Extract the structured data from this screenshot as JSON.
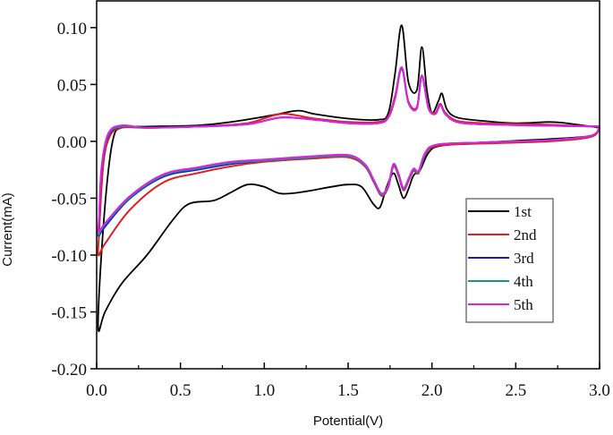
{
  "chart_data": {
    "type": "line",
    "title": "",
    "xlabel": "Potential(V)",
    "ylabel": "Current(mA)",
    "xlim": [
      0.0,
      3.0
    ],
    "ylim": [
      -0.2,
      0.12
    ],
    "xticks": [
      "0.0",
      "0.5",
      "1.0",
      "1.5",
      "2.0",
      "2.5",
      "3.0"
    ],
    "xtick_values": [
      0.0,
      0.5,
      1.0,
      1.5,
      2.0,
      2.5,
      3.0
    ],
    "yticks": [
      "0.10",
      "0.05",
      "0.00",
      "-0.05",
      "-0.10",
      "-0.15",
      "-0.20"
    ],
    "ytick_values": [
      0.1,
      0.05,
      0.0,
      -0.05,
      -0.1,
      -0.15,
      -0.2
    ],
    "grid": false,
    "legend_position": "bottom-right",
    "series": [
      {
        "name": "1st",
        "color": "#000000",
        "points": [
          [
            3.0,
            0.012
          ],
          [
            2.8,
            0.016
          ],
          [
            2.7,
            0.017
          ],
          [
            2.5,
            0.016
          ],
          [
            2.3,
            0.018
          ],
          [
            2.15,
            0.021
          ],
          [
            2.09,
            0.028
          ],
          [
            2.06,
            0.042
          ],
          [
            2.04,
            0.036
          ],
          [
            2.0,
            0.025
          ],
          [
            1.97,
            0.045
          ],
          [
            1.94,
            0.083
          ],
          [
            1.91,
            0.045
          ],
          [
            1.86,
            0.052
          ],
          [
            1.82,
            0.102
          ],
          [
            1.78,
            0.06
          ],
          [
            1.74,
            0.025
          ],
          [
            1.68,
            0.019
          ],
          [
            1.5,
            0.02
          ],
          [
            1.3,
            0.024
          ],
          [
            1.2,
            0.027
          ],
          [
            1.05,
            0.023
          ],
          [
            0.8,
            0.017
          ],
          [
            0.6,
            0.014
          ],
          [
            0.3,
            0.013
          ],
          [
            0.15,
            0.012
          ],
          [
            0.1,
            0.003
          ],
          [
            0.06,
            -0.04
          ],
          [
            0.02,
            -0.12
          ],
          [
            0.01,
            -0.166
          ],
          [
            0.05,
            -0.15
          ],
          [
            0.15,
            -0.125
          ],
          [
            0.3,
            -0.1
          ],
          [
            0.45,
            -0.07
          ],
          [
            0.55,
            -0.055
          ],
          [
            0.7,
            -0.052
          ],
          [
            0.8,
            -0.045
          ],
          [
            0.9,
            -0.038
          ],
          [
            1.0,
            -0.04
          ],
          [
            1.1,
            -0.046
          ],
          [
            1.25,
            -0.044
          ],
          [
            1.4,
            -0.04
          ],
          [
            1.5,
            -0.038
          ],
          [
            1.58,
            -0.04
          ],
          [
            1.65,
            -0.055
          ],
          [
            1.69,
            -0.058
          ],
          [
            1.73,
            -0.04
          ],
          [
            1.77,
            -0.028
          ],
          [
            1.8,
            -0.038
          ],
          [
            1.83,
            -0.05
          ],
          [
            1.86,
            -0.042
          ],
          [
            1.89,
            -0.03
          ],
          [
            1.93,
            -0.025
          ],
          [
            1.98,
            -0.01
          ],
          [
            2.05,
            -0.004
          ],
          [
            2.3,
            -0.001
          ],
          [
            2.7,
            0.002
          ],
          [
            2.95,
            0.005
          ],
          [
            3.0,
            0.012
          ]
        ]
      },
      {
        "name": "2nd",
        "color": "#e02020",
        "points": [
          [
            3.0,
            0.013
          ],
          [
            2.6,
            0.015
          ],
          [
            2.3,
            0.016
          ],
          [
            2.15,
            0.018
          ],
          [
            2.08,
            0.025
          ],
          [
            2.05,
            0.033
          ],
          [
            2.02,
            0.025
          ],
          [
            1.98,
            0.03
          ],
          [
            1.94,
            0.058
          ],
          [
            1.91,
            0.03
          ],
          [
            1.86,
            0.035
          ],
          [
            1.82,
            0.065
          ],
          [
            1.78,
            0.04
          ],
          [
            1.74,
            0.022
          ],
          [
            1.68,
            0.017
          ],
          [
            1.5,
            0.017
          ],
          [
            1.3,
            0.02
          ],
          [
            1.1,
            0.024
          ],
          [
            0.9,
            0.016
          ],
          [
            0.6,
            0.013
          ],
          [
            0.3,
            0.012
          ],
          [
            0.15,
            0.012
          ],
          [
            0.08,
            0.005
          ],
          [
            0.04,
            -0.02
          ],
          [
            0.015,
            -0.08
          ],
          [
            0.01,
            -0.1
          ],
          [
            0.05,
            -0.09
          ],
          [
            0.2,
            -0.06
          ],
          [
            0.4,
            -0.036
          ],
          [
            0.6,
            -0.028
          ],
          [
            0.8,
            -0.022
          ],
          [
            1.0,
            -0.018
          ],
          [
            1.3,
            -0.015
          ],
          [
            1.5,
            -0.014
          ],
          [
            1.6,
            -0.022
          ],
          [
            1.65,
            -0.035
          ],
          [
            1.7,
            -0.048
          ],
          [
            1.74,
            -0.04
          ],
          [
            1.77,
            -0.022
          ],
          [
            1.8,
            -0.03
          ],
          [
            1.83,
            -0.043
          ],
          [
            1.86,
            -0.035
          ],
          [
            1.89,
            -0.026
          ],
          [
            1.92,
            -0.028
          ],
          [
            1.96,
            -0.012
          ],
          [
            2.03,
            -0.004
          ],
          [
            2.3,
            -0.002
          ],
          [
            2.7,
            0.0
          ],
          [
            2.95,
            0.004
          ],
          [
            3.0,
            0.013
          ]
        ]
      },
      {
        "name": "3rd",
        "color": "#1a1acc",
        "points": [
          [
            3.0,
            0.013
          ],
          [
            2.6,
            0.014
          ],
          [
            2.3,
            0.015
          ],
          [
            2.15,
            0.017
          ],
          [
            2.08,
            0.024
          ],
          [
            2.05,
            0.032
          ],
          [
            2.02,
            0.024
          ],
          [
            1.98,
            0.029
          ],
          [
            1.94,
            0.057
          ],
          [
            1.91,
            0.029
          ],
          [
            1.86,
            0.034
          ],
          [
            1.82,
            0.064
          ],
          [
            1.78,
            0.038
          ],
          [
            1.74,
            0.021
          ],
          [
            1.68,
            0.016
          ],
          [
            1.5,
            0.016
          ],
          [
            1.3,
            0.019
          ],
          [
            1.1,
            0.021
          ],
          [
            0.9,
            0.015
          ],
          [
            0.6,
            0.013
          ],
          [
            0.3,
            0.012
          ],
          [
            0.15,
            0.013
          ],
          [
            0.07,
            0.005
          ],
          [
            0.03,
            -0.025
          ],
          [
            0.015,
            -0.07
          ],
          [
            0.01,
            -0.083
          ],
          [
            0.05,
            -0.075
          ],
          [
            0.2,
            -0.05
          ],
          [
            0.4,
            -0.031
          ],
          [
            0.6,
            -0.025
          ],
          [
            0.8,
            -0.02
          ],
          [
            1.0,
            -0.017
          ],
          [
            1.3,
            -0.014
          ],
          [
            1.5,
            -0.013
          ],
          [
            1.6,
            -0.021
          ],
          [
            1.65,
            -0.034
          ],
          [
            1.7,
            -0.047
          ],
          [
            1.74,
            -0.039
          ],
          [
            1.77,
            -0.021
          ],
          [
            1.8,
            -0.029
          ],
          [
            1.83,
            -0.042
          ],
          [
            1.86,
            -0.034
          ],
          [
            1.89,
            -0.025
          ],
          [
            1.92,
            -0.027
          ],
          [
            1.96,
            -0.011
          ],
          [
            2.03,
            -0.003
          ],
          [
            2.3,
            -0.001
          ],
          [
            2.7,
            0.001
          ],
          [
            2.95,
            0.005
          ],
          [
            3.0,
            0.013
          ]
        ]
      },
      {
        "name": "4th",
        "color": "#1a9090",
        "points": [
          [
            3.0,
            0.013
          ],
          [
            2.6,
            0.014
          ],
          [
            2.3,
            0.015
          ],
          [
            2.15,
            0.017
          ],
          [
            2.08,
            0.024
          ],
          [
            2.05,
            0.032
          ],
          [
            2.02,
            0.024
          ],
          [
            1.98,
            0.029
          ],
          [
            1.94,
            0.057
          ],
          [
            1.91,
            0.029
          ],
          [
            1.86,
            0.034
          ],
          [
            1.82,
            0.065
          ],
          [
            1.78,
            0.038
          ],
          [
            1.74,
            0.021
          ],
          [
            1.68,
            0.016
          ],
          [
            1.5,
            0.016
          ],
          [
            1.3,
            0.019
          ],
          [
            1.1,
            0.021
          ],
          [
            0.9,
            0.015
          ],
          [
            0.6,
            0.013
          ],
          [
            0.3,
            0.012
          ],
          [
            0.15,
            0.013
          ],
          [
            0.07,
            0.006
          ],
          [
            0.03,
            -0.024
          ],
          [
            0.015,
            -0.068
          ],
          [
            0.01,
            -0.082
          ],
          [
            0.05,
            -0.073
          ],
          [
            0.2,
            -0.049
          ],
          [
            0.4,
            -0.03
          ],
          [
            0.6,
            -0.024
          ],
          [
            0.8,
            -0.019
          ],
          [
            1.0,
            -0.017
          ],
          [
            1.3,
            -0.014
          ],
          [
            1.5,
            -0.013
          ],
          [
            1.6,
            -0.021
          ],
          [
            1.65,
            -0.034
          ],
          [
            1.7,
            -0.047
          ],
          [
            1.74,
            -0.039
          ],
          [
            1.77,
            -0.021
          ],
          [
            1.8,
            -0.029
          ],
          [
            1.83,
            -0.042
          ],
          [
            1.86,
            -0.034
          ],
          [
            1.89,
            -0.025
          ],
          [
            1.92,
            -0.027
          ],
          [
            1.96,
            -0.011
          ],
          [
            2.03,
            -0.003
          ],
          [
            2.3,
            -0.001
          ],
          [
            2.7,
            0.001
          ],
          [
            2.95,
            0.005
          ],
          [
            3.0,
            0.013
          ]
        ]
      },
      {
        "name": "5th",
        "color": "#e020e0",
        "points": [
          [
            3.0,
            0.013
          ],
          [
            2.6,
            0.014
          ],
          [
            2.3,
            0.015
          ],
          [
            2.15,
            0.017
          ],
          [
            2.08,
            0.024
          ],
          [
            2.05,
            0.032
          ],
          [
            2.02,
            0.024
          ],
          [
            1.98,
            0.029
          ],
          [
            1.94,
            0.058
          ],
          [
            1.91,
            0.029
          ],
          [
            1.86,
            0.034
          ],
          [
            1.82,
            0.065
          ],
          [
            1.78,
            0.038
          ],
          [
            1.74,
            0.021
          ],
          [
            1.68,
            0.016
          ],
          [
            1.5,
            0.016
          ],
          [
            1.3,
            0.019
          ],
          [
            1.1,
            0.021
          ],
          [
            0.9,
            0.015
          ],
          [
            0.6,
            0.013
          ],
          [
            0.3,
            0.012
          ],
          [
            0.15,
            0.014
          ],
          [
            0.07,
            0.007
          ],
          [
            0.03,
            -0.022
          ],
          [
            0.015,
            -0.066
          ],
          [
            0.01,
            -0.08
          ],
          [
            0.05,
            -0.072
          ],
          [
            0.2,
            -0.048
          ],
          [
            0.4,
            -0.029
          ],
          [
            0.6,
            -0.023
          ],
          [
            0.8,
            -0.018
          ],
          [
            1.0,
            -0.016
          ],
          [
            1.3,
            -0.013
          ],
          [
            1.5,
            -0.012
          ],
          [
            1.6,
            -0.02
          ],
          [
            1.65,
            -0.033
          ],
          [
            1.7,
            -0.046
          ],
          [
            1.74,
            -0.038
          ],
          [
            1.77,
            -0.02
          ],
          [
            1.8,
            -0.028
          ],
          [
            1.83,
            -0.041
          ],
          [
            1.86,
            -0.033
          ],
          [
            1.89,
            -0.024
          ],
          [
            1.92,
            -0.026
          ],
          [
            1.96,
            -0.01
          ],
          [
            2.03,
            -0.003
          ],
          [
            2.3,
            -0.001
          ],
          [
            2.7,
            0.001
          ],
          [
            2.95,
            0.005
          ],
          [
            3.0,
            0.013
          ]
        ]
      }
    ]
  }
}
